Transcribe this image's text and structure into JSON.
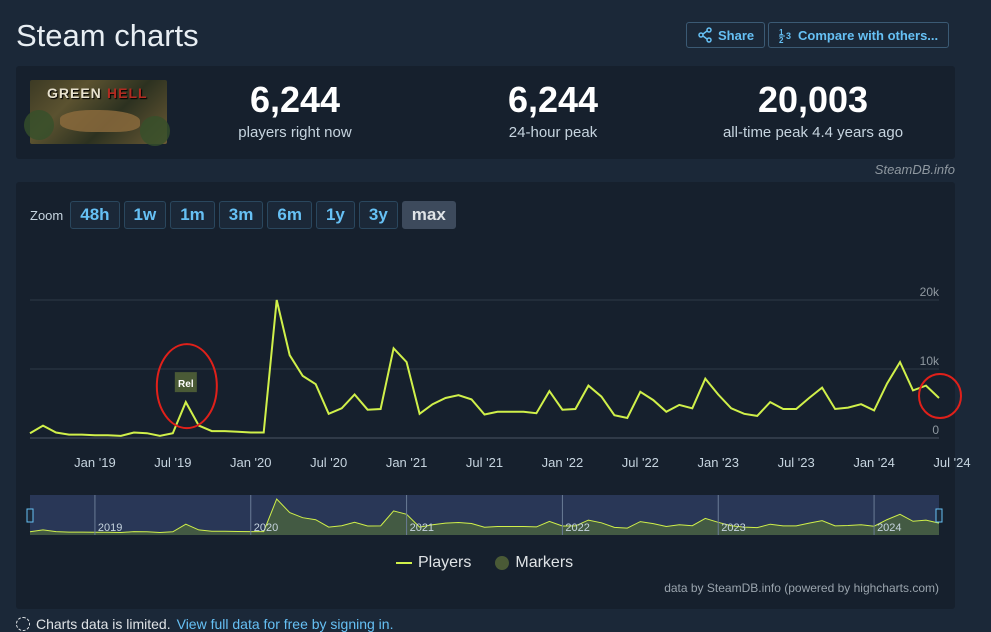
{
  "page": {
    "title": "Steam charts"
  },
  "header": {
    "share_label": "Share",
    "compare_label": "Compare with others..."
  },
  "game": {
    "logo_word1": "GREEN",
    "logo_word2": "HELL"
  },
  "stats": [
    {
      "value": "6,244",
      "label": "players right now"
    },
    {
      "value": "6,244",
      "label": "24-hour peak"
    },
    {
      "value": "20,003",
      "label": "all-time peak 4.4 years ago"
    }
  ],
  "source": "SteamDB.info",
  "zoom": {
    "label": "Zoom",
    "options": [
      "48h",
      "1w",
      "1m",
      "3m",
      "6m",
      "1y",
      "3y",
      "max"
    ],
    "active": "max"
  },
  "legend": {
    "players": "Players",
    "markers": "Markers"
  },
  "credit": "data by SteamDB.info (powered by highcharts.com)",
  "note": {
    "text": "Charts data is limited.",
    "link": "View full data for free by signing in."
  },
  "colors": {
    "line": "#d0f04a",
    "annotation": "#e0201a",
    "marker": "#4a5a36",
    "navigator_bg": "#3b4a7a"
  },
  "chart_data": {
    "type": "line",
    "series": [
      {
        "name": "Players",
        "x_month": [
          0,
          1,
          2,
          3,
          4,
          5,
          6,
          7,
          8,
          9,
          10,
          11,
          12,
          13,
          14,
          15,
          16,
          17,
          18,
          19,
          20,
          21,
          22,
          23,
          24,
          25,
          26,
          27,
          28,
          29,
          30,
          31,
          32,
          33,
          34,
          35,
          36,
          37,
          38,
          39,
          40,
          41,
          42,
          43,
          44,
          45,
          46,
          47,
          48,
          49,
          50,
          51,
          52,
          53,
          54,
          55,
          56,
          57,
          58,
          59,
          60,
          61,
          62,
          63,
          64,
          65,
          66,
          67,
          68,
          69,
          70
        ],
        "values": [
          700,
          1800,
          800,
          500,
          500,
          400,
          400,
          300,
          800,
          700,
          300,
          700,
          5200,
          1800,
          1000,
          1000,
          900,
          800,
          800,
          20000,
          12000,
          9000,
          7800,
          3500,
          4300,
          6300,
          4100,
          4200,
          13000,
          11000,
          3500,
          4900,
          5800,
          6200,
          5600,
          3400,
          3800,
          3800,
          3800,
          3600,
          6800,
          4100,
          4200,
          7600,
          6000,
          3300,
          2900,
          6700,
          5500,
          3800,
          4800,
          4300,
          8600,
          6300,
          4300,
          3500,
          3200,
          5200,
          4200,
          4200,
          5800,
          7300,
          4200,
          4400,
          4900,
          4000,
          7900,
          11000,
          6900,
          7600,
          5800
        ]
      }
    ],
    "x_ticks": [
      "Jan '19",
      "Jul '19",
      "Jan '20",
      "Jul '20",
      "Jan '21",
      "Jul '21",
      "Jan '22",
      "Jul '22",
      "Jan '23",
      "Jul '23",
      "Jan '24",
      "Jul '24"
    ],
    "y_ticks": [
      "0",
      "10k",
      "20k"
    ],
    "ylim": [
      0,
      20000
    ],
    "marker_label": "Rel",
    "navigator_years": [
      "2019",
      "2020",
      "2021",
      "2022",
      "2023",
      "2024"
    ],
    "grid": true,
    "legend_position": "bottom-center"
  }
}
